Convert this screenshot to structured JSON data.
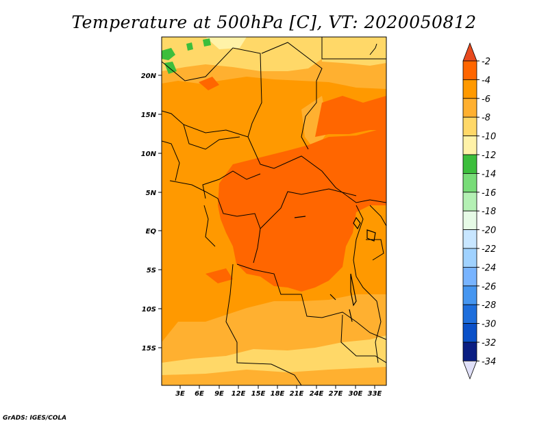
{
  "title": "Temperature at 500hPa [C], VT: 2020050812",
  "credit": "GrADS: IGES/COLA",
  "lat_ticks": [
    "20N",
    "15N",
    "10N",
    "5N",
    "EQ",
    "5S",
    "10S",
    "15S"
  ],
  "lon_ticks": [
    "3E",
    "6E",
    "9E",
    "12E",
    "15E",
    "18E",
    "21E",
    "24E",
    "27E",
    "30E",
    "33E"
  ],
  "colorbar": {
    "labels": [
      "-2",
      "-4",
      "-6",
      "-8",
      "-10",
      "-12",
      "-14",
      "-16",
      "-18",
      "-20",
      "-22",
      "-24",
      "-26",
      "-28",
      "-30",
      "-32",
      "-34"
    ],
    "colors": [
      "#e84a1e",
      "#ff6600",
      "#ff9900",
      "#ffb030",
      "#ffd868",
      "#fff2a8",
      "#3cbe3c",
      "#78dc78",
      "#b4f0b4",
      "#e6fae6",
      "#c8e6ff",
      "#a0d2ff",
      "#78b4ff",
      "#4696f0",
      "#1e6edc",
      "#0a50c8",
      "#0a1e82",
      "#0a0a5a",
      "#e0e0f8"
    ]
  },
  "colors": {
    "hot": "#ff6600",
    "orange": "#ff9900",
    "light_orange": "#ffb030",
    "pale": "#ffd868",
    "very_pale": "#fff2a8",
    "green": "#3cbe3c"
  }
}
